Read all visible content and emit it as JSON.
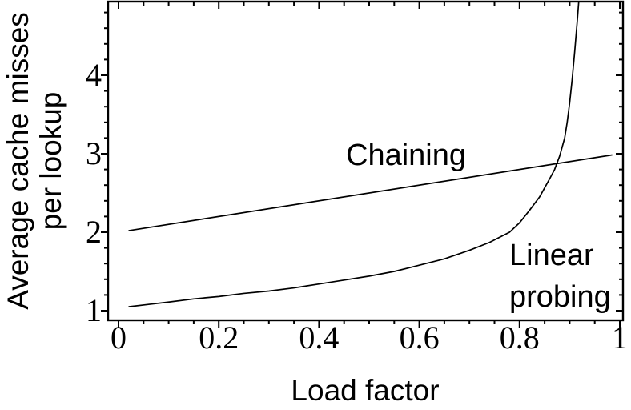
{
  "chart_data": {
    "type": "line",
    "title": "",
    "xlabel": "Load factor",
    "ylabel": "Average cache misses per lookup",
    "ylabel_lines": [
      "Average cache misses",
      "per lookup"
    ],
    "xlim": [
      -0.021,
      1.006
    ],
    "ylim": [
      0.878,
      4.94
    ],
    "grid": false,
    "legend_position": "inline-annotations",
    "colors": {
      "curve": "#000000",
      "frame": "#000000",
      "text": "#000000",
      "background": "#ffffff"
    },
    "x_axis": {
      "major_ticks": [
        0,
        0.2,
        0.4,
        0.6,
        0.8,
        1
      ],
      "major_labels": [
        "0",
        "0.2",
        "0.4",
        "0.6",
        "0.8",
        "1"
      ],
      "minor_tick_step": 0.05
    },
    "y_axis": {
      "major_ticks": [
        1,
        2,
        3,
        4
      ],
      "major_labels": [
        "1",
        "2",
        "3",
        "4"
      ],
      "minor_tick_step": 0.2
    },
    "series": [
      {
        "name": "chaining",
        "label": "Chaining",
        "points": [
          [
            0.02,
            2.02
          ],
          [
            0.985,
            2.985
          ]
        ]
      },
      {
        "name": "linear-probing",
        "label": "Linear probing",
        "label_lines": [
          "Linear",
          "probing"
        ],
        "points": [
          [
            0.02,
            1.05
          ],
          [
            0.06,
            1.08
          ],
          [
            0.1,
            1.11
          ],
          [
            0.15,
            1.15
          ],
          [
            0.2,
            1.18
          ],
          [
            0.25,
            1.22
          ],
          [
            0.3,
            1.25
          ],
          [
            0.35,
            1.29
          ],
          [
            0.4,
            1.34
          ],
          [
            0.45,
            1.39
          ],
          [
            0.5,
            1.44
          ],
          [
            0.55,
            1.5
          ],
          [
            0.6,
            1.58
          ],
          [
            0.65,
            1.66
          ],
          [
            0.7,
            1.77
          ],
          [
            0.74,
            1.87
          ],
          [
            0.78,
            2.0
          ],
          [
            0.8,
            2.12
          ],
          [
            0.82,
            2.28
          ],
          [
            0.84,
            2.45
          ],
          [
            0.86,
            2.68
          ],
          [
            0.87,
            2.8
          ],
          [
            0.88,
            2.97
          ],
          [
            0.89,
            3.2
          ],
          [
            0.895,
            3.4
          ],
          [
            0.9,
            3.65
          ],
          [
            0.905,
            3.95
          ],
          [
            0.91,
            4.3
          ],
          [
            0.915,
            4.68
          ],
          [
            0.918,
            4.93
          ]
        ]
      }
    ]
  }
}
